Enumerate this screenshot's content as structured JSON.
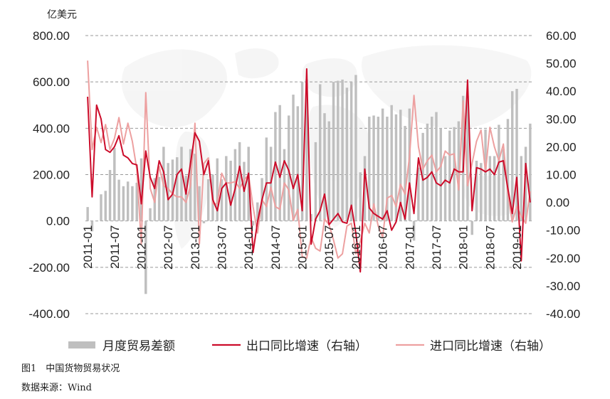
{
  "unit_label": "亿美元",
  "caption": "图1　中国货物贸易状况",
  "source": "数据来源：Wind",
  "colors": {
    "bar": "#bfbfbf",
    "export_line": "#cc0c2a",
    "import_line": "#eda0a0",
    "grid": "#999999"
  },
  "chart_data": {
    "type": "bar+line",
    "y_left": {
      "ticks": [
        "800.00",
        "600.00",
        "400.00",
        "200.00",
        "0.00",
        "-200.00",
        "-400.00"
      ],
      "min": -400,
      "max": 800
    },
    "y_right": {
      "ticks": [
        "60.00",
        "50.00",
        "40.00",
        "30.00",
        "20.00",
        "10.00",
        "0.00",
        "-10.00",
        "-20.00",
        "-30.00",
        "-40.00"
      ],
      "min": -40,
      "max": 60
    },
    "x_tick_labels": [
      "2011-01",
      "2011-07",
      "2012-01",
      "2012-07",
      "2013-01",
      "2013-07",
      "2014-01",
      "2014-07",
      "2015-01",
      "2015-07",
      "2016-01",
      "2016-07",
      "2017-01",
      "2017-07",
      "2018-01",
      "2018-07",
      "2019-01"
    ],
    "months": [
      "2011-01",
      "2011-02",
      "2011-03",
      "2011-04",
      "2011-05",
      "2011-06",
      "2011-07",
      "2011-08",
      "2011-09",
      "2011-10",
      "2011-11",
      "2011-12",
      "2012-01",
      "2012-02",
      "2012-03",
      "2012-04",
      "2012-05",
      "2012-06",
      "2012-07",
      "2012-08",
      "2012-09",
      "2012-10",
      "2012-11",
      "2012-12",
      "2013-01",
      "2013-02",
      "2013-03",
      "2013-04",
      "2013-05",
      "2013-06",
      "2013-07",
      "2013-08",
      "2013-09",
      "2013-10",
      "2013-11",
      "2013-12",
      "2014-01",
      "2014-02",
      "2014-03",
      "2014-04",
      "2014-05",
      "2014-06",
      "2014-07",
      "2014-08",
      "2014-09",
      "2014-10",
      "2014-11",
      "2014-12",
      "2015-01",
      "2015-02",
      "2015-03",
      "2015-04",
      "2015-05",
      "2015-06",
      "2015-07",
      "2015-08",
      "2015-09",
      "2015-10",
      "2015-11",
      "2015-12",
      "2016-01",
      "2016-02",
      "2016-03",
      "2016-04",
      "2016-05",
      "2016-06",
      "2016-07",
      "2016-08",
      "2016-09",
      "2016-10",
      "2016-11",
      "2016-12",
      "2017-01",
      "2017-02",
      "2017-03",
      "2017-04",
      "2017-05",
      "2017-06",
      "2017-07",
      "2017-08",
      "2017-09",
      "2017-10",
      "2017-11",
      "2017-12",
      "2018-01",
      "2018-02",
      "2018-03",
      "2018-04",
      "2018-05",
      "2018-06",
      "2018-07",
      "2018-08",
      "2018-09",
      "2018-10",
      "2018-11",
      "2018-12",
      "2019-01",
      "2019-02",
      "2019-03",
      "2019-04"
    ],
    "series": [
      {
        "name": "月度贸易差额",
        "kind": "bar",
        "axis": "left",
        "values": [
          60,
          -45,
          0,
          115,
          130,
          220,
          315,
          178,
          150,
          170,
          150,
          165,
          270,
          -315,
          55,
          185,
          190,
          320,
          250,
          265,
          275,
          320,
          195,
          310,
          290,
          150,
          -10,
          180,
          200,
          270,
          180,
          280,
          260,
          310,
          340,
          255,
          320,
          -20,
          80,
          185,
          360,
          320,
          470,
          500,
          310,
          455,
          545,
          495,
          600,
          610,
          30,
          340,
          590,
          465,
          430,
          600,
          605,
          610,
          575,
          600,
          630,
          210,
          280,
          450,
          455,
          450,
          485,
          450,
          500,
          460,
          480,
          410,
          485,
          -85,
          230,
          380,
          420,
          450,
          470,
          400,
          280,
          390,
          405,
          430,
          540,
          540,
          -60,
          260,
          250,
          395,
          280,
          280,
          415,
          310,
          440,
          560,
          570,
          280,
          320,
          420
        ]
      },
      {
        "name": "出口同比增速（右轴）",
        "kind": "line",
        "axis": "right",
        "values": [
          38,
          2,
          35,
          30,
          19,
          18,
          20,
          24,
          17,
          16,
          14,
          13.5,
          -0.5,
          18.5,
          9,
          5,
          15,
          11,
          1,
          3,
          10,
          12,
          3,
          14,
          25,
          22,
          10,
          15,
          1,
          -3,
          5,
          7,
          -1,
          5,
          13,
          4,
          10.5,
          -18,
          -7,
          1,
          7,
          7,
          14.5,
          9,
          15,
          11.5,
          5,
          10,
          -3,
          48,
          -15,
          -6,
          -3,
          3,
          -8,
          -6,
          -4,
          -7,
          -7.5,
          -1,
          -11,
          -25,
          12,
          -2,
          -4,
          -5,
          -6,
          -3,
          -10,
          -7,
          0,
          -6,
          7,
          -4,
          16,
          8,
          9,
          11,
          7,
          6,
          8,
          7,
          12,
          11,
          11,
          44,
          -3,
          12.5,
          12,
          11,
          12,
          10,
          14.5,
          15,
          5,
          -4,
          9,
          -21,
          14,
          0
        ]
      },
      {
        "name": "进口同比增速（右轴）",
        "kind": "line",
        "axis": "right",
        "values": [
          51,
          19,
          27,
          21.5,
          28,
          19,
          23,
          30.5,
          21,
          28.5,
          22,
          12,
          -15,
          39.5,
          5,
          0,
          13,
          6,
          5,
          3,
          2,
          2,
          0,
          6,
          28.5,
          -15,
          14,
          16,
          -0.5,
          -0.5,
          10.5,
          7,
          7,
          7.5,
          5,
          8,
          10,
          -1.5,
          -11,
          1,
          -1.5,
          5.5,
          -1.5,
          -2.5,
          7,
          4.5,
          -6.5,
          -2.5,
          -19.5,
          -20,
          -12.5,
          -16.5,
          -17.5,
          -6,
          -8,
          -13.5,
          -20,
          -18.5,
          -8.5,
          -7.5,
          -18.5,
          -14,
          -7.5,
          -11,
          -0.5,
          -8.5,
          -12.5,
          1.5,
          2.5,
          -1.5,
          6.5,
          3,
          16.5,
          38.5,
          20,
          12,
          15,
          17,
          11,
          13,
          18.5,
          17,
          17.5,
          4.5,
          36.5,
          6,
          14,
          22,
          26,
          11,
          27,
          20,
          15,
          21,
          3,
          -7,
          -1.5,
          -5,
          -7.5,
          4
        ]
      }
    ],
    "legend": [
      "月度贸易差额",
      "出口同比增速（右轴）",
      "进口同比增速（右轴）"
    ],
    "legend_position": "bottom"
  }
}
